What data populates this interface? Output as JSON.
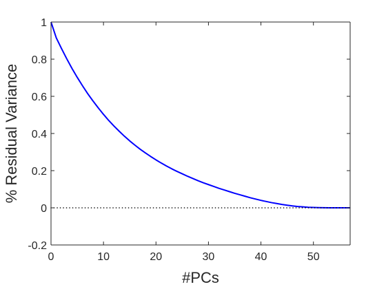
{
  "chart_data": {
    "type": "line",
    "title": "",
    "xlabel": "#PCs",
    "ylabel": "% Residual Variance",
    "xlim": [
      0,
      57
    ],
    "ylim": [
      -0.2,
      1
    ],
    "x_ticks": [
      "0",
      "10",
      "20",
      "30",
      "40",
      "50"
    ],
    "y_ticks": [
      "-0.2",
      "0",
      "0.2",
      "0.4",
      "0.6",
      "0.8",
      "1"
    ],
    "grid": false,
    "series": [
      {
        "color": "#0000ff",
        "style": "solid",
        "x": [
          0,
          1,
          2,
          3,
          4,
          5,
          6,
          7,
          8,
          9,
          10,
          11,
          12,
          13,
          14,
          15,
          16,
          17,
          18,
          19,
          20,
          21,
          22,
          23,
          24,
          25,
          26,
          27,
          28,
          29,
          30,
          31,
          32,
          33,
          34,
          35,
          36,
          37,
          38,
          39,
          40,
          41,
          42,
          43,
          44,
          45,
          46,
          47,
          48,
          49,
          50,
          51,
          52,
          53,
          54,
          55,
          56,
          57
        ],
        "values": [
          1.0,
          0.915,
          0.857,
          0.802,
          0.75,
          0.702,
          0.657,
          0.614,
          0.575,
          0.538,
          0.503,
          0.47,
          0.44,
          0.412,
          0.385,
          0.36,
          0.337,
          0.315,
          0.295,
          0.276,
          0.258,
          0.241,
          0.225,
          0.21,
          0.196,
          0.183,
          0.17,
          0.158,
          0.146,
          0.135,
          0.125,
          0.115,
          0.105,
          0.096,
          0.087,
          0.078,
          0.07,
          0.062,
          0.054,
          0.047,
          0.04,
          0.034,
          0.028,
          0.023,
          0.018,
          0.014,
          0.01,
          0.007,
          0.005,
          0.003,
          0.002,
          0.001,
          0.0005,
          0.0002,
          0.0001,
          0.0,
          0.0,
          0.0
        ]
      },
      {
        "color": "#000000",
        "style": "dotted",
        "x": [
          0,
          57
        ],
        "values": [
          0,
          0
        ]
      }
    ]
  }
}
